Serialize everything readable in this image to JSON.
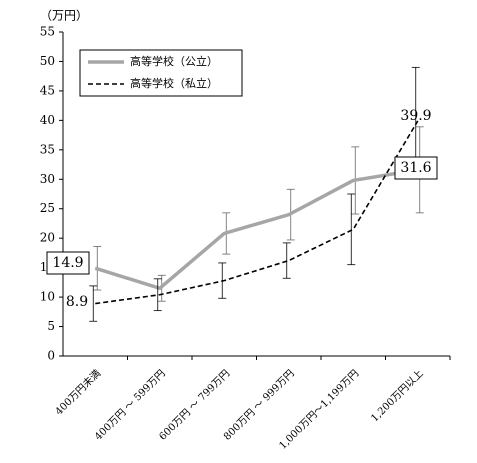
{
  "chart_data": {
    "type": "line",
    "y_label": "（万円）",
    "categories": [
      "400万円未満",
      "400万円 ～ 599万円",
      "600万円 ～ 799万円",
      "800万円 ～ 999万円",
      "1,000万円～1,199万円",
      "1,200万円以上"
    ],
    "series": [
      {
        "name": "高等学校（公立）",
        "color": "#a6a6a6",
        "dash": "solid",
        "values": [
          14.9,
          11.5,
          20.8,
          24.0,
          29.8,
          31.6
        ],
        "errors": [
          3.7,
          2.2,
          3.5,
          4.3,
          5.7,
          7.3
        ],
        "value_labels": [
          "14.9",
          null,
          null,
          null,
          null,
          "31.6"
        ]
      },
      {
        "name": "高等学校（私立）",
        "color": "#000000",
        "dash": "dashed",
        "values": [
          8.9,
          10.4,
          12.8,
          16.2,
          21.5,
          39.9
        ],
        "errors": [
          3.0,
          2.7,
          3.0,
          3.0,
          6.0,
          9.1
        ],
        "value_labels": [
          "8.9",
          null,
          null,
          null,
          null,
          "39.9"
        ]
      }
    ],
    "ylim": [
      0,
      55
    ],
    "yticks": [
      0,
      5,
      10,
      15,
      20,
      25,
      30,
      35,
      40,
      45,
      50,
      55
    ],
    "legend": "upper left"
  }
}
